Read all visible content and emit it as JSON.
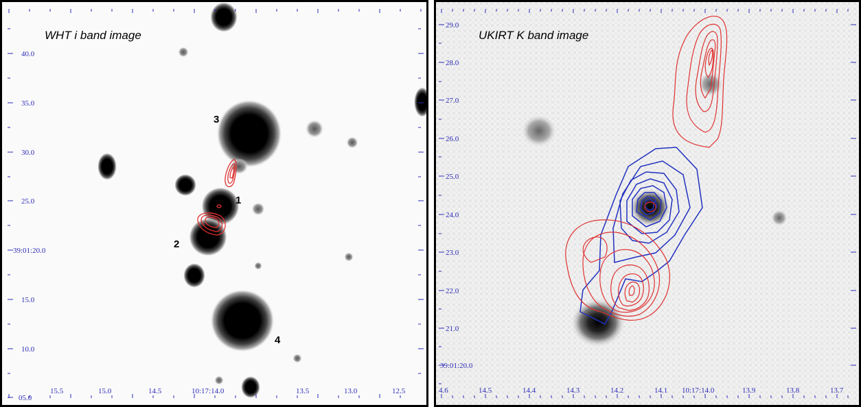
{
  "panels": {
    "left": {
      "title": "WHT i band image",
      "dec_ticks": [
        "40.0",
        "35.0",
        "30.0",
        "25.0",
        "39:01:20.0",
        "15.0",
        "10.0",
        "05.0"
      ],
      "ra_ticks": [
        "15.5",
        "15.0",
        "14.5",
        "10:17:14.0",
        "13.5",
        "13.0",
        "12.5"
      ],
      "source_labels": [
        "1",
        "2",
        "3",
        "4"
      ],
      "contour_color": "#e03030"
    },
    "right": {
      "title": "UKIRT K band image",
      "dec_ticks": [
        "29.0",
        "28.0",
        "27.0",
        "26.0",
        "25.0",
        "24.0",
        "23.0",
        "22.0",
        "21.0",
        "39:01:20.0"
      ],
      "ra_ticks": [
        "4.6",
        "14.5",
        "14.4",
        "14.3",
        "14.2",
        "14.1",
        "10:17:14.0",
        "13.9",
        "13.8",
        "13.7"
      ],
      "contour_colors": [
        "#e03030",
        "#2030c0"
      ]
    }
  }
}
